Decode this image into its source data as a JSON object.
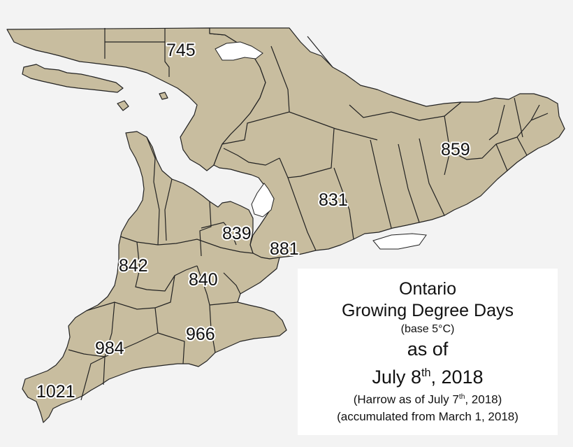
{
  "map": {
    "colors": {
      "land": "#c8bd9f",
      "water": "#ffffff",
      "background": "#f3f3f3",
      "border": "#222222"
    },
    "region_values": [
      {
        "id": "north",
        "value": "745"
      },
      {
        "id": "east",
        "value": "859"
      },
      {
        "id": "central-east",
        "value": "831"
      },
      {
        "id": "central",
        "value": "839"
      },
      {
        "id": "gta",
        "value": "881"
      },
      {
        "id": "west-north",
        "value": "842"
      },
      {
        "id": "west-central",
        "value": "840"
      },
      {
        "id": "south-central",
        "value": "966"
      },
      {
        "id": "southwest",
        "value": "984"
      },
      {
        "id": "harrow",
        "value": "1021"
      }
    ]
  },
  "legend": {
    "title": "Ontario",
    "subtitle": "Growing Degree Days",
    "base": "(base 5°C)",
    "as_of": "as of",
    "date_prefix": "July 8",
    "date_sup": "th",
    "date_suffix": ", 2018",
    "harrow_prefix": "(Harrow as of July 7",
    "harrow_sup": "th",
    "harrow_suffix": ", 2018)",
    "accumulated": "(accumulated from March 1, 2018)"
  }
}
